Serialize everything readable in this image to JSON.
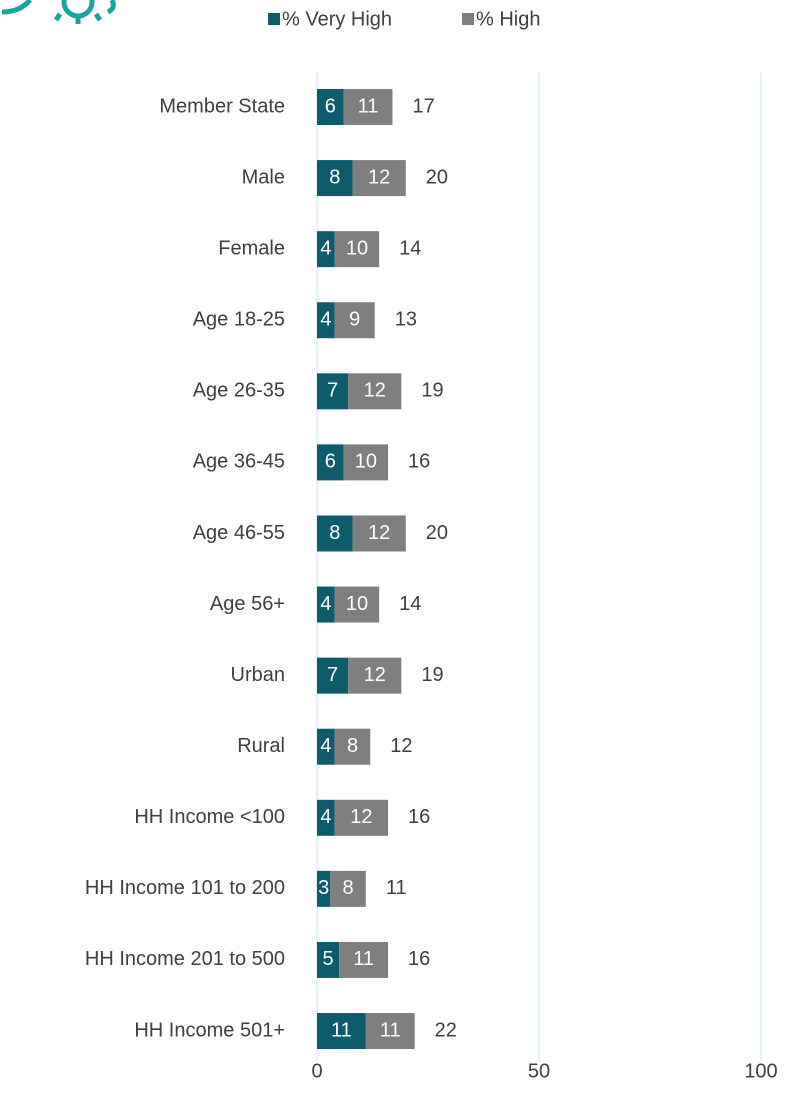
{
  "chart_data": {
    "type": "stacked_barh",
    "categories": [
      "Member State",
      "Male",
      "Female",
      "Age 18-25",
      "Age 26-35",
      "Age 36-45",
      "Age 46-55",
      "Age 56+",
      "Urban",
      "Rural",
      "HH Income <100",
      "HH Income 101 to 200",
      "HH Income 201 to 500",
      "HH Income 501+"
    ],
    "series": [
      {
        "name": "% Very High",
        "color": "#0e5c6b",
        "values": [
          6,
          8,
          4,
          4,
          7,
          6,
          8,
          4,
          7,
          4,
          4,
          3,
          5,
          11
        ]
      },
      {
        "name": "% High",
        "color": "#7f7f7f",
        "values": [
          11,
          12,
          10,
          9,
          12,
          10,
          12,
          10,
          12,
          8,
          12,
          8,
          11,
          11
        ]
      }
    ],
    "totals": [
      17,
      20,
      14,
      13,
      19,
      16,
      20,
      14,
      19,
      12,
      16,
      11,
      16,
      22
    ],
    "xlim": [
      0,
      100
    ],
    "xticks": [
      0,
      50,
      100
    ],
    "grid": true,
    "legend": "top"
  }
}
